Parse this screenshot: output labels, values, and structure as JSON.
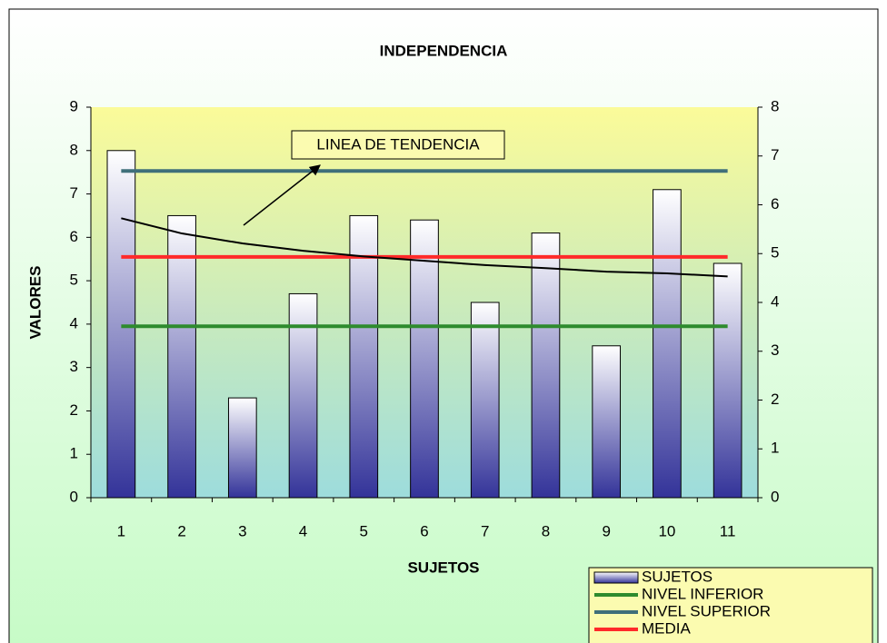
{
  "chart_data": {
    "type": "bar",
    "title": "INDEPENDENCIA",
    "x_label": "SUJETOS",
    "y_label": "VALORES",
    "categories": [
      "1",
      "2",
      "3",
      "4",
      "5",
      "6",
      "7",
      "8",
      "9",
      "10",
      "11"
    ],
    "series": [
      {
        "name": "SUJETOS",
        "type": "bar",
        "color": "#333399",
        "values": [
          8,
          6.5,
          2.3,
          4.7,
          6.5,
          6.4,
          4.5,
          6.1,
          3.5,
          7.1,
          5.4
        ]
      },
      {
        "name": "NIVEL INFERIOR",
        "type": "line",
        "color": "#2e8b2e",
        "values": [
          3.95,
          3.95,
          3.95,
          3.95,
          3.95,
          3.95,
          3.95,
          3.95,
          3.95,
          3.95,
          3.95
        ]
      },
      {
        "name": "NIVEL SUPERIOR",
        "type": "line",
        "color": "#3f6f7a",
        "values": [
          7.53,
          7.53,
          7.53,
          7.53,
          7.53,
          7.53,
          7.53,
          7.53,
          7.53,
          7.53,
          7.53
        ]
      },
      {
        "name": "MEDIA",
        "type": "line",
        "color": "#ff2a2a",
        "values": [
          5.55,
          5.55,
          5.55,
          5.55,
          5.55,
          5.55,
          5.55,
          5.55,
          5.55,
          5.55,
          5.55
        ]
      }
    ],
    "trendline": {
      "color": "#000000",
      "values": [
        6.44,
        6.09,
        5.86,
        5.69,
        5.56,
        5.46,
        5.36,
        5.29,
        5.21,
        5.17,
        5.1
      ]
    },
    "annotation": "LINEA DE TENDENCIA",
    "ylim": [
      0,
      9
    ],
    "yticks": [
      0,
      1,
      2,
      3,
      4,
      5,
      6,
      7,
      8,
      9
    ],
    "y2lim": [
      0,
      8
    ],
    "y2ticks": [
      0,
      1,
      2,
      3,
      4,
      5,
      6,
      7,
      8
    ]
  }
}
